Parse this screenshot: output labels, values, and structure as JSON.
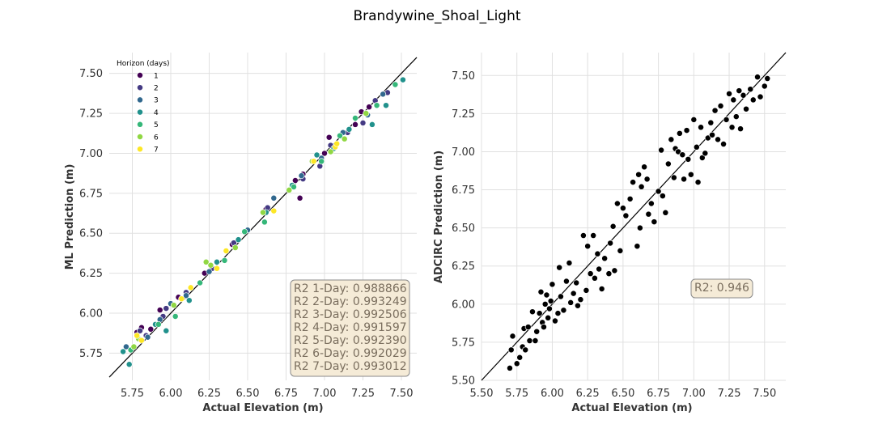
{
  "figure_title": "Brandywine_Shoal_Light",
  "colors": {
    "grid": "#e0e0e0",
    "reference_line": "#000000",
    "stat_box_fill": "#f5ebd7",
    "stat_box_edge": "#8a8a8a",
    "stat_box_text": "#7a6e5e",
    "adcirc_points": "#000000"
  },
  "chart_data": [
    {
      "type": "scatter",
      "title": "",
      "xlabel": "Actual Elevation (m)",
      "ylabel": "ML Prediction (m)",
      "xlim": [
        5.6,
        7.6
      ],
      "ylim": [
        5.58,
        7.63
      ],
      "xticks": [
        "5.75",
        "6.00",
        "6.25",
        "6.50",
        "6.75",
        "7.00",
        "7.25",
        "7.50"
      ],
      "yticks": [
        "5.75",
        "6.00",
        "6.25",
        "6.50",
        "6.75",
        "7.00",
        "7.25",
        "7.50"
      ],
      "grid": true,
      "reference_line": "y = x",
      "legend": {
        "title": "Horizon (days)",
        "placement": "top-left"
      },
      "series": [
        {
          "name": "1",
          "color": "#440154",
          "points": [
            [
              5.78,
              5.88
            ],
            [
              5.81,
              5.91
            ],
            [
              5.87,
              5.9
            ],
            [
              5.93,
              6.02
            ],
            [
              6.05,
              6.1
            ],
            [
              6.22,
              6.25
            ],
            [
              6.4,
              6.43
            ],
            [
              6.62,
              6.65
            ],
            [
              6.81,
              6.83
            ],
            [
              6.84,
              6.72
            ],
            [
              6.86,
              6.87
            ],
            [
              7.0,
              7.0
            ],
            [
              7.03,
              7.1
            ],
            [
              7.2,
              7.18
            ],
            [
              7.24,
              7.26
            ],
            [
              7.29,
              7.29
            ]
          ]
        },
        {
          "name": "2",
          "color": "#443a83",
          "points": [
            [
              5.8,
              5.89
            ],
            [
              5.84,
              5.86
            ],
            [
              5.95,
              5.98
            ],
            [
              5.97,
              6.03
            ],
            [
              6.1,
              6.13
            ],
            [
              6.27,
              6.28
            ],
            [
              6.41,
              6.44
            ],
            [
              6.63,
              6.66
            ],
            [
              6.86,
              6.84
            ],
            [
              6.97,
              6.92
            ],
            [
              7.04,
              7.05
            ],
            [
              7.15,
              7.13
            ],
            [
              7.25,
              7.19
            ],
            [
              7.33,
              7.33
            ],
            [
              7.41,
              7.38
            ]
          ]
        },
        {
          "name": "3",
          "color": "#31688e",
          "points": [
            [
              5.71,
              5.79
            ],
            [
              5.85,
              5.85
            ],
            [
              5.93,
              5.96
            ],
            [
              6.0,
              6.06
            ],
            [
              6.1,
              6.11
            ],
            [
              6.25,
              6.26
            ],
            [
              6.36,
              6.39
            ],
            [
              6.5,
              6.52
            ],
            [
              6.67,
              6.72
            ],
            [
              6.85,
              6.86
            ],
            [
              6.98,
              6.97
            ],
            [
              7.12,
              7.13
            ],
            [
              7.28,
              7.24
            ],
            [
              7.38,
              7.37
            ]
          ]
        },
        {
          "name": "4",
          "color": "#21918c",
          "points": [
            [
              5.69,
              5.76
            ],
            [
              5.73,
              5.68
            ],
            [
              5.9,
              5.93
            ],
            [
              5.97,
              5.89
            ],
            [
              6.12,
              6.08
            ],
            [
              6.3,
              6.32
            ],
            [
              6.44,
              6.46
            ],
            [
              6.62,
              6.63
            ],
            [
              6.79,
              6.8
            ],
            [
              6.95,
              6.99
            ],
            [
              7.06,
              7.03
            ],
            [
              7.16,
              7.15
            ],
            [
              7.31,
              7.18
            ],
            [
              7.4,
              7.3
            ],
            [
              7.51,
              7.46
            ]
          ]
        },
        {
          "name": "5",
          "color": "#35b779",
          "points": [
            [
              5.74,
              5.77
            ],
            [
              5.92,
              5.93
            ],
            [
              6.03,
              5.98
            ],
            [
              6.19,
              6.19
            ],
            [
              6.35,
              6.33
            ],
            [
              6.48,
              6.51
            ],
            [
              6.61,
              6.57
            ],
            [
              6.8,
              6.79
            ],
            [
              6.98,
              6.95
            ],
            [
              7.1,
              7.11
            ],
            [
              7.2,
              7.22
            ],
            [
              7.34,
              7.3
            ],
            [
              7.46,
              7.43
            ]
          ]
        },
        {
          "name": "6",
          "color": "#90d743",
          "points": [
            [
              5.76,
              5.79
            ],
            [
              5.79,
              5.84
            ],
            [
              6.02,
              6.05
            ],
            [
              6.23,
              6.32
            ],
            [
              6.26,
              6.3
            ],
            [
              6.42,
              6.41
            ],
            [
              6.6,
              6.63
            ],
            [
              6.77,
              6.77
            ],
            [
              6.92,
              6.95
            ],
            [
              7.04,
              7.01
            ],
            [
              7.13,
              7.09
            ],
            [
              7.27,
              7.25
            ]
          ]
        },
        {
          "name": "7",
          "color": "#fde725",
          "points": [
            [
              5.78,
              5.86
            ],
            [
              5.81,
              5.83
            ],
            [
              6.07,
              6.09
            ],
            [
              6.13,
              6.16
            ],
            [
              6.3,
              6.28
            ],
            [
              6.36,
              6.39
            ],
            [
              6.67,
              6.64
            ],
            [
              6.93,
              6.95
            ],
            [
              7.07,
              7.04
            ],
            [
              7.08,
              7.06
            ]
          ]
        }
      ],
      "stats": [
        "R2 1-Day: 0.988866",
        "R2 2-Day: 0.993249",
        "R2 3-Day: 0.992506",
        "R2 4-Day: 0.991597",
        "R2 5-Day: 0.992390",
        "R2 6-Day: 0.992029",
        "R2 7-Day: 0.993012"
      ]
    },
    {
      "type": "scatter",
      "title": "",
      "xlabel": "Actual Elevation (m)",
      "ylabel": "ADCIRC Prediction (m)",
      "xlim": [
        5.5,
        7.65
      ],
      "ylim": [
        5.5,
        7.65
      ],
      "xticks": [
        "5.50",
        "5.75",
        "6.00",
        "6.25",
        "6.50",
        "6.75",
        "7.00",
        "7.25",
        "7.50"
      ],
      "yticks": [
        "5.50",
        "5.75",
        "6.00",
        "6.25",
        "6.50",
        "6.75",
        "7.00",
        "7.25",
        "7.50"
      ],
      "grid": true,
      "reference_line": "y = x",
      "series": [
        {
          "name": "",
          "color": "#000000",
          "points": [
            [
              5.7,
              5.58
            ],
            [
              5.71,
              5.7
            ],
            [
              5.72,
              5.79
            ],
            [
              5.75,
              5.61
            ],
            [
              5.77,
              5.65
            ],
            [
              5.79,
              5.72
            ],
            [
              5.8,
              5.84
            ],
            [
              5.81,
              5.7
            ],
            [
              5.83,
              5.85
            ],
            [
              5.84,
              5.76
            ],
            [
              5.86,
              5.95
            ],
            [
              5.88,
              5.76
            ],
            [
              5.89,
              5.82
            ],
            [
              5.91,
              5.94
            ],
            [
              5.92,
              6.08
            ],
            [
              5.93,
              5.88
            ],
            [
              5.94,
              5.85
            ],
            [
              5.95,
              6.0
            ],
            [
              5.96,
              6.06
            ],
            [
              5.97,
              5.91
            ],
            [
              5.98,
              5.97
            ],
            [
              5.99,
              6.02
            ],
            [
              6.0,
              6.13
            ],
            [
              6.02,
              5.89
            ],
            [
              6.04,
              5.94
            ],
            [
              6.05,
              6.24
            ],
            [
              6.06,
              6.05
            ],
            [
              6.08,
              5.96
            ],
            [
              6.1,
              6.15
            ],
            [
              6.12,
              6.27
            ],
            [
              6.13,
              6.01
            ],
            [
              6.15,
              6.07
            ],
            [
              6.17,
              6.14
            ],
            [
              6.18,
              5.99
            ],
            [
              6.2,
              6.03
            ],
            [
              6.22,
              6.45
            ],
            [
              6.24,
              6.09
            ],
            [
              6.25,
              6.38
            ],
            [
              6.27,
              6.2
            ],
            [
              6.29,
              6.45
            ],
            [
              6.3,
              6.17
            ],
            [
              6.32,
              6.33
            ],
            [
              6.33,
              6.23
            ],
            [
              6.35,
              6.1
            ],
            [
              6.37,
              6.3
            ],
            [
              6.4,
              6.2
            ],
            [
              6.41,
              6.4
            ],
            [
              6.43,
              6.51
            ],
            [
              6.44,
              6.22
            ],
            [
              6.46,
              6.66
            ],
            [
              6.48,
              6.35
            ],
            [
              6.5,
              6.63
            ],
            [
              6.52,
              6.58
            ],
            [
              6.55,
              6.69
            ],
            [
              6.57,
              6.8
            ],
            [
              6.6,
              6.38
            ],
            [
              6.61,
              6.85
            ],
            [
              6.62,
              6.5
            ],
            [
              6.63,
              6.77
            ],
            [
              6.65,
              6.9
            ],
            [
              6.67,
              6.82
            ],
            [
              6.68,
              6.59
            ],
            [
              6.7,
              6.66
            ],
            [
              6.72,
              6.54
            ],
            [
              6.75,
              6.74
            ],
            [
              6.77,
              7.01
            ],
            [
              6.78,
              6.71
            ],
            [
              6.8,
              6.6
            ],
            [
              6.82,
              6.92
            ],
            [
              6.84,
              7.08
            ],
            [
              6.86,
              6.83
            ],
            [
              6.87,
              7.02
            ],
            [
              6.89,
              7.0
            ],
            [
              6.9,
              7.12
            ],
            [
              6.92,
              6.98
            ],
            [
              6.93,
              6.82
            ],
            [
              6.95,
              7.14
            ],
            [
              6.96,
              6.95
            ],
            [
              6.98,
              6.85
            ],
            [
              7.0,
              7.21
            ],
            [
              7.02,
              7.03
            ],
            [
              7.03,
              6.8
            ],
            [
              7.05,
              7.16
            ],
            [
              7.06,
              6.96
            ],
            [
              7.08,
              6.99
            ],
            [
              7.1,
              7.09
            ],
            [
              7.12,
              7.19
            ],
            [
              7.13,
              7.11
            ],
            [
              7.15,
              7.27
            ],
            [
              7.17,
              7.08
            ],
            [
              7.19,
              7.3
            ],
            [
              7.21,
              7.05
            ],
            [
              7.23,
              7.21
            ],
            [
              7.25,
              7.38
            ],
            [
              7.27,
              7.16
            ],
            [
              7.28,
              7.34
            ],
            [
              7.3,
              7.23
            ],
            [
              7.32,
              7.4
            ],
            [
              7.33,
              7.15
            ],
            [
              7.35,
              7.37
            ],
            [
              7.37,
              7.28
            ],
            [
              7.4,
              7.41
            ],
            [
              7.42,
              7.34
            ],
            [
              7.45,
              7.49
            ],
            [
              7.47,
              7.36
            ],
            [
              7.5,
              7.43
            ],
            [
              7.52,
              7.48
            ]
          ]
        }
      ],
      "stats": [
        "R2: 0.946"
      ]
    }
  ]
}
